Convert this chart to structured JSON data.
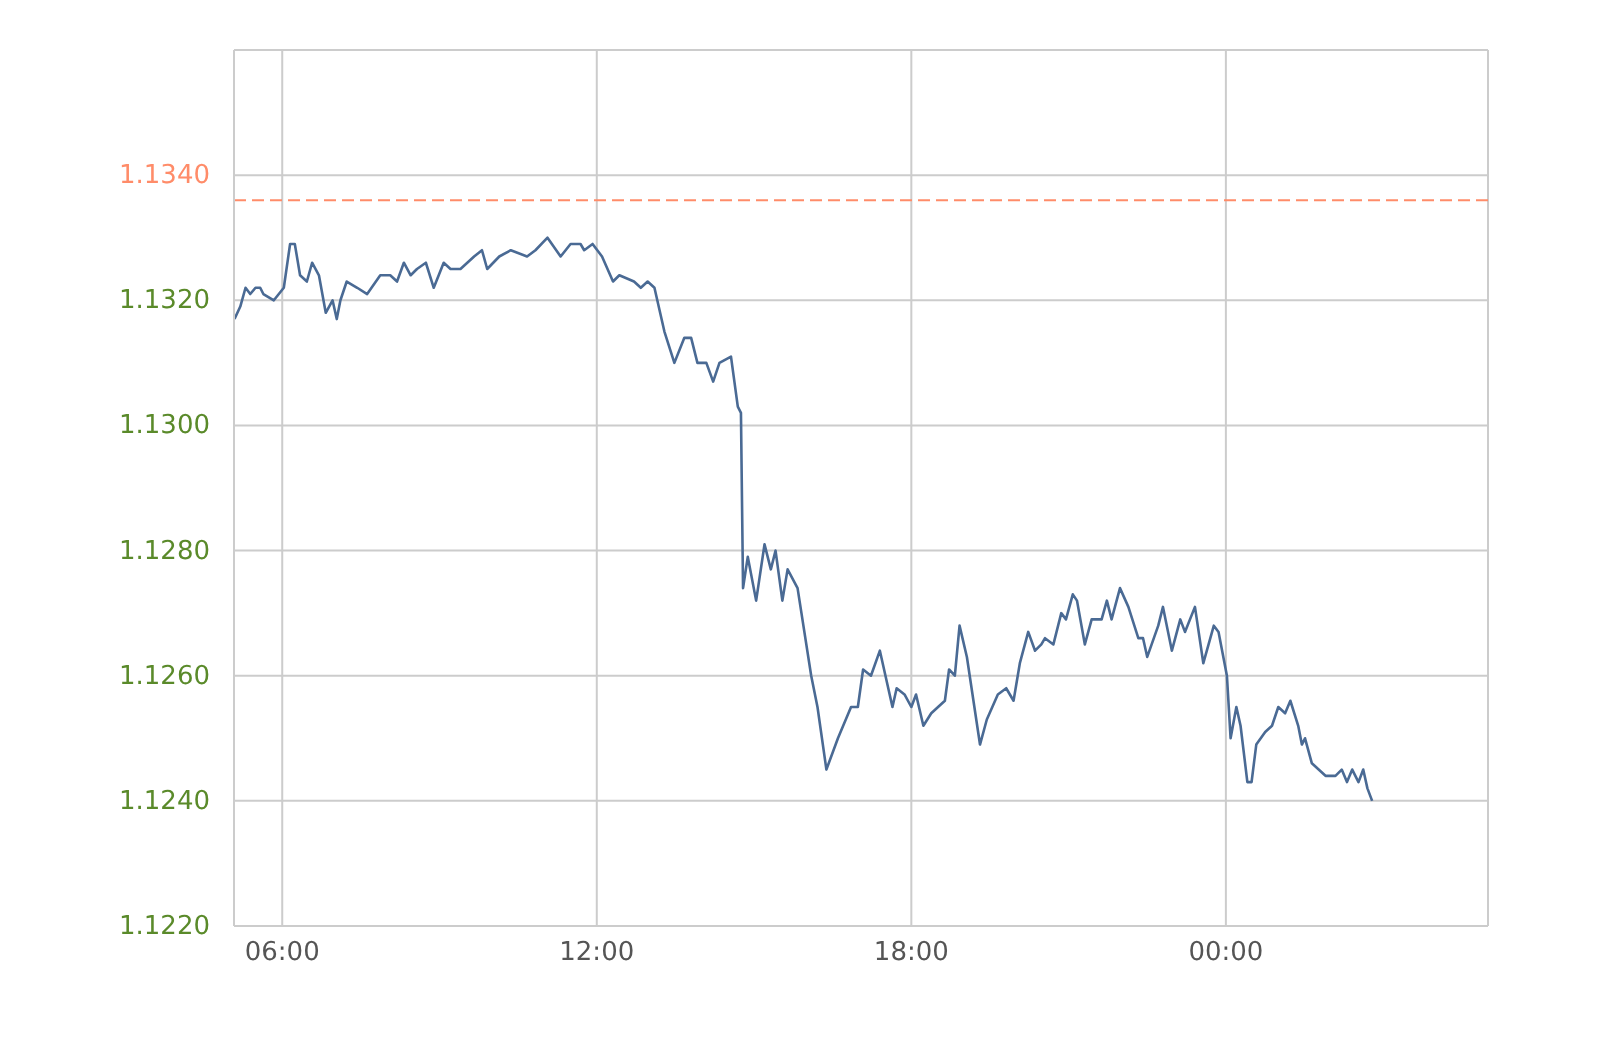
{
  "chart_data": {
    "type": "line",
    "x": [
      5.09,
      5.2,
      5.3,
      5.39,
      5.49,
      5.58,
      5.64,
      5.84,
      6.03,
      6.15,
      6.24,
      6.34,
      6.47,
      6.57,
      6.7,
      6.83,
      6.96,
      7.04,
      7.11,
      7.23,
      7.43,
      7.62,
      7.87,
      8.06,
      8.19,
      8.32,
      8.45,
      8.57,
      8.74,
      8.89,
      9.08,
      9.21,
      9.4,
      9.66,
      9.81,
      9.91,
      10.14,
      10.36,
      10.67,
      10.83,
      11.06,
      11.31,
      11.5,
      11.69,
      11.76,
      11.92,
      12.1,
      12.31,
      12.43,
      12.71,
      12.84,
      12.97,
      13.1,
      13.29,
      13.48,
      13.67,
      13.8,
      13.92,
      14.09,
      14.22,
      14.34,
      14.56,
      14.69,
      14.75,
      14.79,
      14.88,
      15.04,
      15.2,
      15.32,
      15.41,
      15.54,
      15.64,
      15.83,
      16.09,
      16.21,
      16.38,
      16.6,
      16.85,
      16.98,
      17.08,
      17.23,
      17.4,
      17.64,
      17.72,
      17.87,
      18.0,
      18.09,
      18.23,
      18.38,
      18.64,
      18.72,
      18.83,
      18.92,
      19.06,
      19.31,
      19.44,
      19.65,
      19.81,
      19.95,
      20.07,
      20.23,
      20.36,
      20.48,
      20.55,
      20.71,
      20.86,
      20.95,
      21.08,
      21.16,
      21.31,
      21.44,
      21.63,
      21.73,
      21.82,
      21.98,
      22.14,
      22.33,
      22.42,
      22.5,
      22.71,
      22.8,
      22.97,
      23.13,
      23.22,
      23.41,
      23.57,
      23.77,
      23.86,
      24.02,
      24.09,
      24.2,
      24.28,
      24.41,
      24.49,
      24.58,
      24.75,
      24.88,
      25.0,
      25.13,
      25.23,
      25.38,
      25.45,
      25.51,
      25.64,
      25.9,
      26.09,
      26.21,
      26.31,
      26.41,
      26.53,
      26.62,
      26.7,
      26.79
    ],
    "series": [
      {
        "color": "#4a6a94",
        "values": [
          1.1317,
          1.1319,
          1.1322,
          1.1321,
          1.1322,
          1.1322,
          1.1321,
          1.132,
          1.1322,
          1.1329,
          1.1329,
          1.1324,
          1.1323,
          1.1326,
          1.1324,
          1.1318,
          1.132,
          1.1317,
          1.132,
          1.1323,
          1.1322,
          1.1321,
          1.1324,
          1.1324,
          1.1323,
          1.1326,
          1.1324,
          1.1325,
          1.1326,
          1.1322,
          1.1326,
          1.1325,
          1.1325,
          1.1327,
          1.1328,
          1.1325,
          1.1327,
          1.1328,
          1.1327,
          1.1328,
          1.133,
          1.1327,
          1.1329,
          1.1329,
          1.1328,
          1.1329,
          1.1327,
          1.1323,
          1.1324,
          1.1323,
          1.1322,
          1.1323,
          1.1322,
          1.1315,
          1.131,
          1.1314,
          1.1314,
          1.131,
          1.131,
          1.1307,
          1.131,
          1.1311,
          1.1303,
          1.1302,
          1.1274,
          1.1279,
          1.1272,
          1.1281,
          1.1277,
          1.128,
          1.1272,
          1.1277,
          1.1274,
          1.126,
          1.1255,
          1.1245,
          1.125,
          1.1255,
          1.1255,
          1.1261,
          1.126,
          1.1264,
          1.1255,
          1.1258,
          1.1257,
          1.1255,
          1.1257,
          1.1252,
          1.1254,
          1.1256,
          1.1261,
          1.126,
          1.1268,
          1.1263,
          1.1249,
          1.1253,
          1.1257,
          1.1258,
          1.1256,
          1.1262,
          1.1267,
          1.1264,
          1.1265,
          1.1266,
          1.1265,
          1.127,
          1.1269,
          1.1273,
          1.1272,
          1.1265,
          1.1269,
          1.1269,
          1.1272,
          1.1269,
          1.1274,
          1.1271,
          1.1266,
          1.1266,
          1.1263,
          1.1268,
          1.1271,
          1.1264,
          1.1269,
          1.1267,
          1.1271,
          1.1262,
          1.1268,
          1.1267,
          1.126,
          1.125,
          1.1255,
          1.1252,
          1.1243,
          1.1243,
          1.1249,
          1.1251,
          1.1252,
          1.1255,
          1.1254,
          1.1256,
          1.1252,
          1.1249,
          1.125,
          1.1246,
          1.1244,
          1.1244,
          1.1245,
          1.1243,
          1.1245,
          1.1243,
          1.1245,
          1.1242,
          1.124
        ]
      }
    ],
    "xlim": [
      5.08,
      29.0
    ],
    "xticks": [
      {
        "value": 6,
        "label": "06:00"
      },
      {
        "value": 12,
        "label": "12:00"
      },
      {
        "value": 18,
        "label": "18:00"
      },
      {
        "value": 24,
        "label": "00:00"
      }
    ],
    "ylim": [
      1.122,
      1.136
    ],
    "yticks": [
      {
        "value": 1.122,
        "label": "1.1220"
      },
      {
        "value": 1.124,
        "label": "1.1240"
      },
      {
        "value": 1.126,
        "label": "1.1260"
      },
      {
        "value": 1.128,
        "label": "1.1280"
      },
      {
        "value": 1.13,
        "label": "1.1300"
      },
      {
        "value": 1.132,
        "label": "1.1320"
      },
      {
        "value": 1.134,
        "label": "1.1340"
      }
    ],
    "ref_lines": [
      {
        "axis": "y",
        "value": 1.1336,
        "color": "#ff8c69",
        "line_style": "dashed"
      }
    ],
    "grid": true,
    "marker": "none",
    "line_style": "solid"
  }
}
